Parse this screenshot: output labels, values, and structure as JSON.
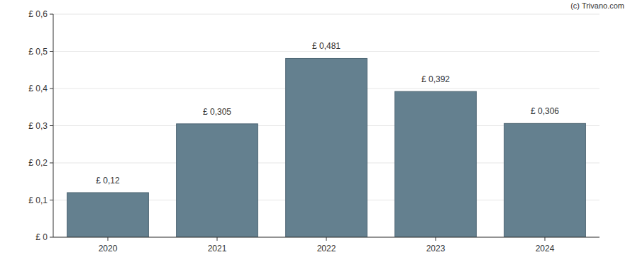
{
  "chart_data": {
    "type": "bar",
    "annotations": [
      "(c) Trivano.com"
    ],
    "categories": [
      "2020",
      "2021",
      "2022",
      "2023",
      "2024"
    ],
    "values": [
      0.12,
      0.305,
      0.481,
      0.392,
      0.306
    ],
    "value_labels": [
      "£ 0,12",
      "£ 0,305",
      "£ 0,481",
      "£ 0,392",
      "£ 0,306"
    ],
    "data_labels": true,
    "color": "#64808f",
    "ylim": [
      0,
      0.6
    ],
    "yticks": [
      {
        "value": 0,
        "label": "£ 0"
      },
      {
        "value": 0.1,
        "label": "£ 0,1"
      },
      {
        "value": 0.2,
        "label": "£ 0,2"
      },
      {
        "value": 0.3,
        "label": "£ 0,3"
      },
      {
        "value": 0.4,
        "label": "£ 0,4"
      },
      {
        "value": 0.5,
        "label": "£ 0,5"
      },
      {
        "value": 0.6,
        "label": "£ 0,6"
      }
    ],
    "grid": true
  }
}
